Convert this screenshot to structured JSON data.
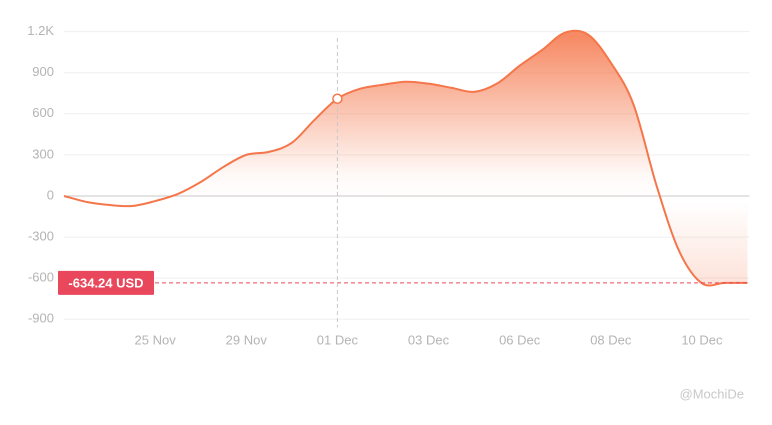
{
  "chart_data": {
    "type": "area",
    "x": [
      0,
      1,
      2,
      3,
      4,
      5,
      6,
      7,
      8,
      9,
      10,
      11,
      12,
      13,
      14,
      15,
      16,
      17,
      18,
      19,
      20,
      21,
      22,
      23,
      24,
      25,
      26,
      27,
      28,
      29,
      30
    ],
    "series": [
      {
        "color": "#f5764a",
        "values": [
          0,
          -44,
          -66,
          -73,
          -37,
          15,
          102,
          212,
          300,
          322,
          388,
          556,
          710,
          783,
          812,
          834,
          820,
          790,
          760,
          820,
          951,
          1068,
          1193,
          1178,
          973,
          666,
          80,
          -402,
          -637,
          -634,
          -634.24
        ]
      }
    ],
    "xlim": [
      0,
      30
    ],
    "xticks": [
      {
        "value": 4,
        "label": "25 Nov"
      },
      {
        "value": 8,
        "label": "29 Nov"
      },
      {
        "value": 12,
        "label": "01 Dec"
      },
      {
        "value": 16,
        "label": "03 Dec"
      },
      {
        "value": 20,
        "label": "06 Dec"
      },
      {
        "value": 24,
        "label": "08 Dec"
      },
      {
        "value": 28,
        "label": "10 Dec"
      }
    ],
    "ylim": [
      -960,
      1270
    ],
    "yticks": [
      {
        "value": 1200,
        "label": "1.2K"
      },
      900,
      600,
      300,
      0,
      -300,
      -600,
      -900
    ],
    "grid": true,
    "highlight_index": 12,
    "reference_line": {
      "value": -634.24,
      "label": "-634.24 USD",
      "color": "#e9475b"
    },
    "watermark": "@MochiDe"
  }
}
